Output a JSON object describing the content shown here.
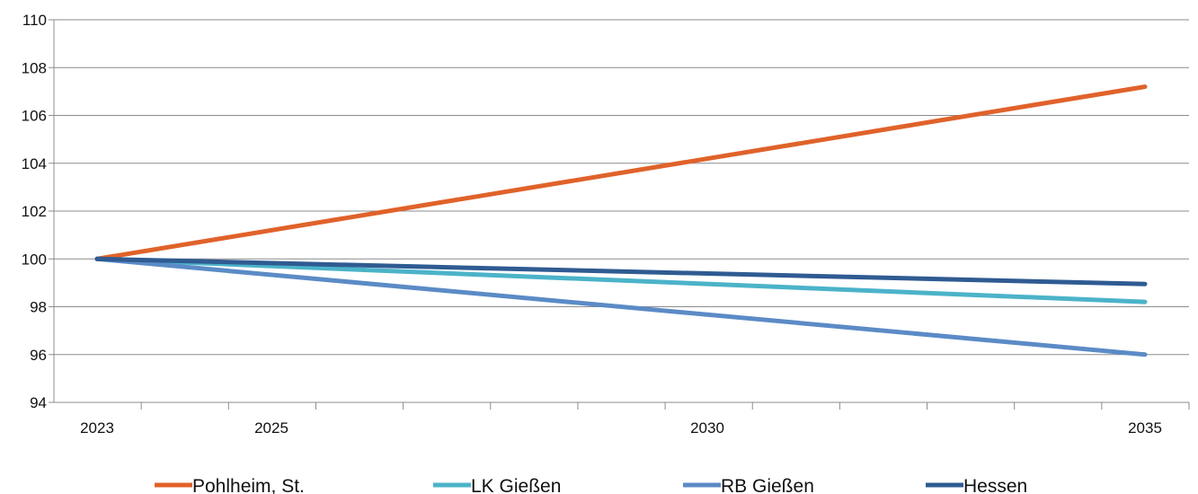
{
  "chart_data": {
    "type": "line",
    "title": "",
    "xlabel": "",
    "ylabel": "",
    "x": [
      2023,
      2035
    ],
    "x_tick_labels": [
      "2023",
      "2025",
      "2030",
      "2035"
    ],
    "ylim": [
      94,
      110
    ],
    "y_ticks": [
      94,
      96,
      98,
      100,
      102,
      104,
      106,
      108,
      110
    ],
    "grid": "horizontal",
    "legend_position": "bottom",
    "series": [
      {
        "name": "Pohlheim, St.",
        "color": "#E0622A",
        "x": [
          2023,
          2035
        ],
        "values": [
          100,
          107.2
        ]
      },
      {
        "name": "LK Gießen",
        "color": "#4BB3C9",
        "x": [
          2023,
          2035
        ],
        "values": [
          100,
          98.2
        ]
      },
      {
        "name": "RB Gießen",
        "color": "#5B8BC6",
        "x": [
          2023,
          2035
        ],
        "values": [
          100,
          96.0
        ]
      },
      {
        "name": "Hessen",
        "color": "#2F5B92",
        "x": [
          2023,
          2035
        ],
        "values": [
          100,
          98.95
        ]
      }
    ]
  }
}
